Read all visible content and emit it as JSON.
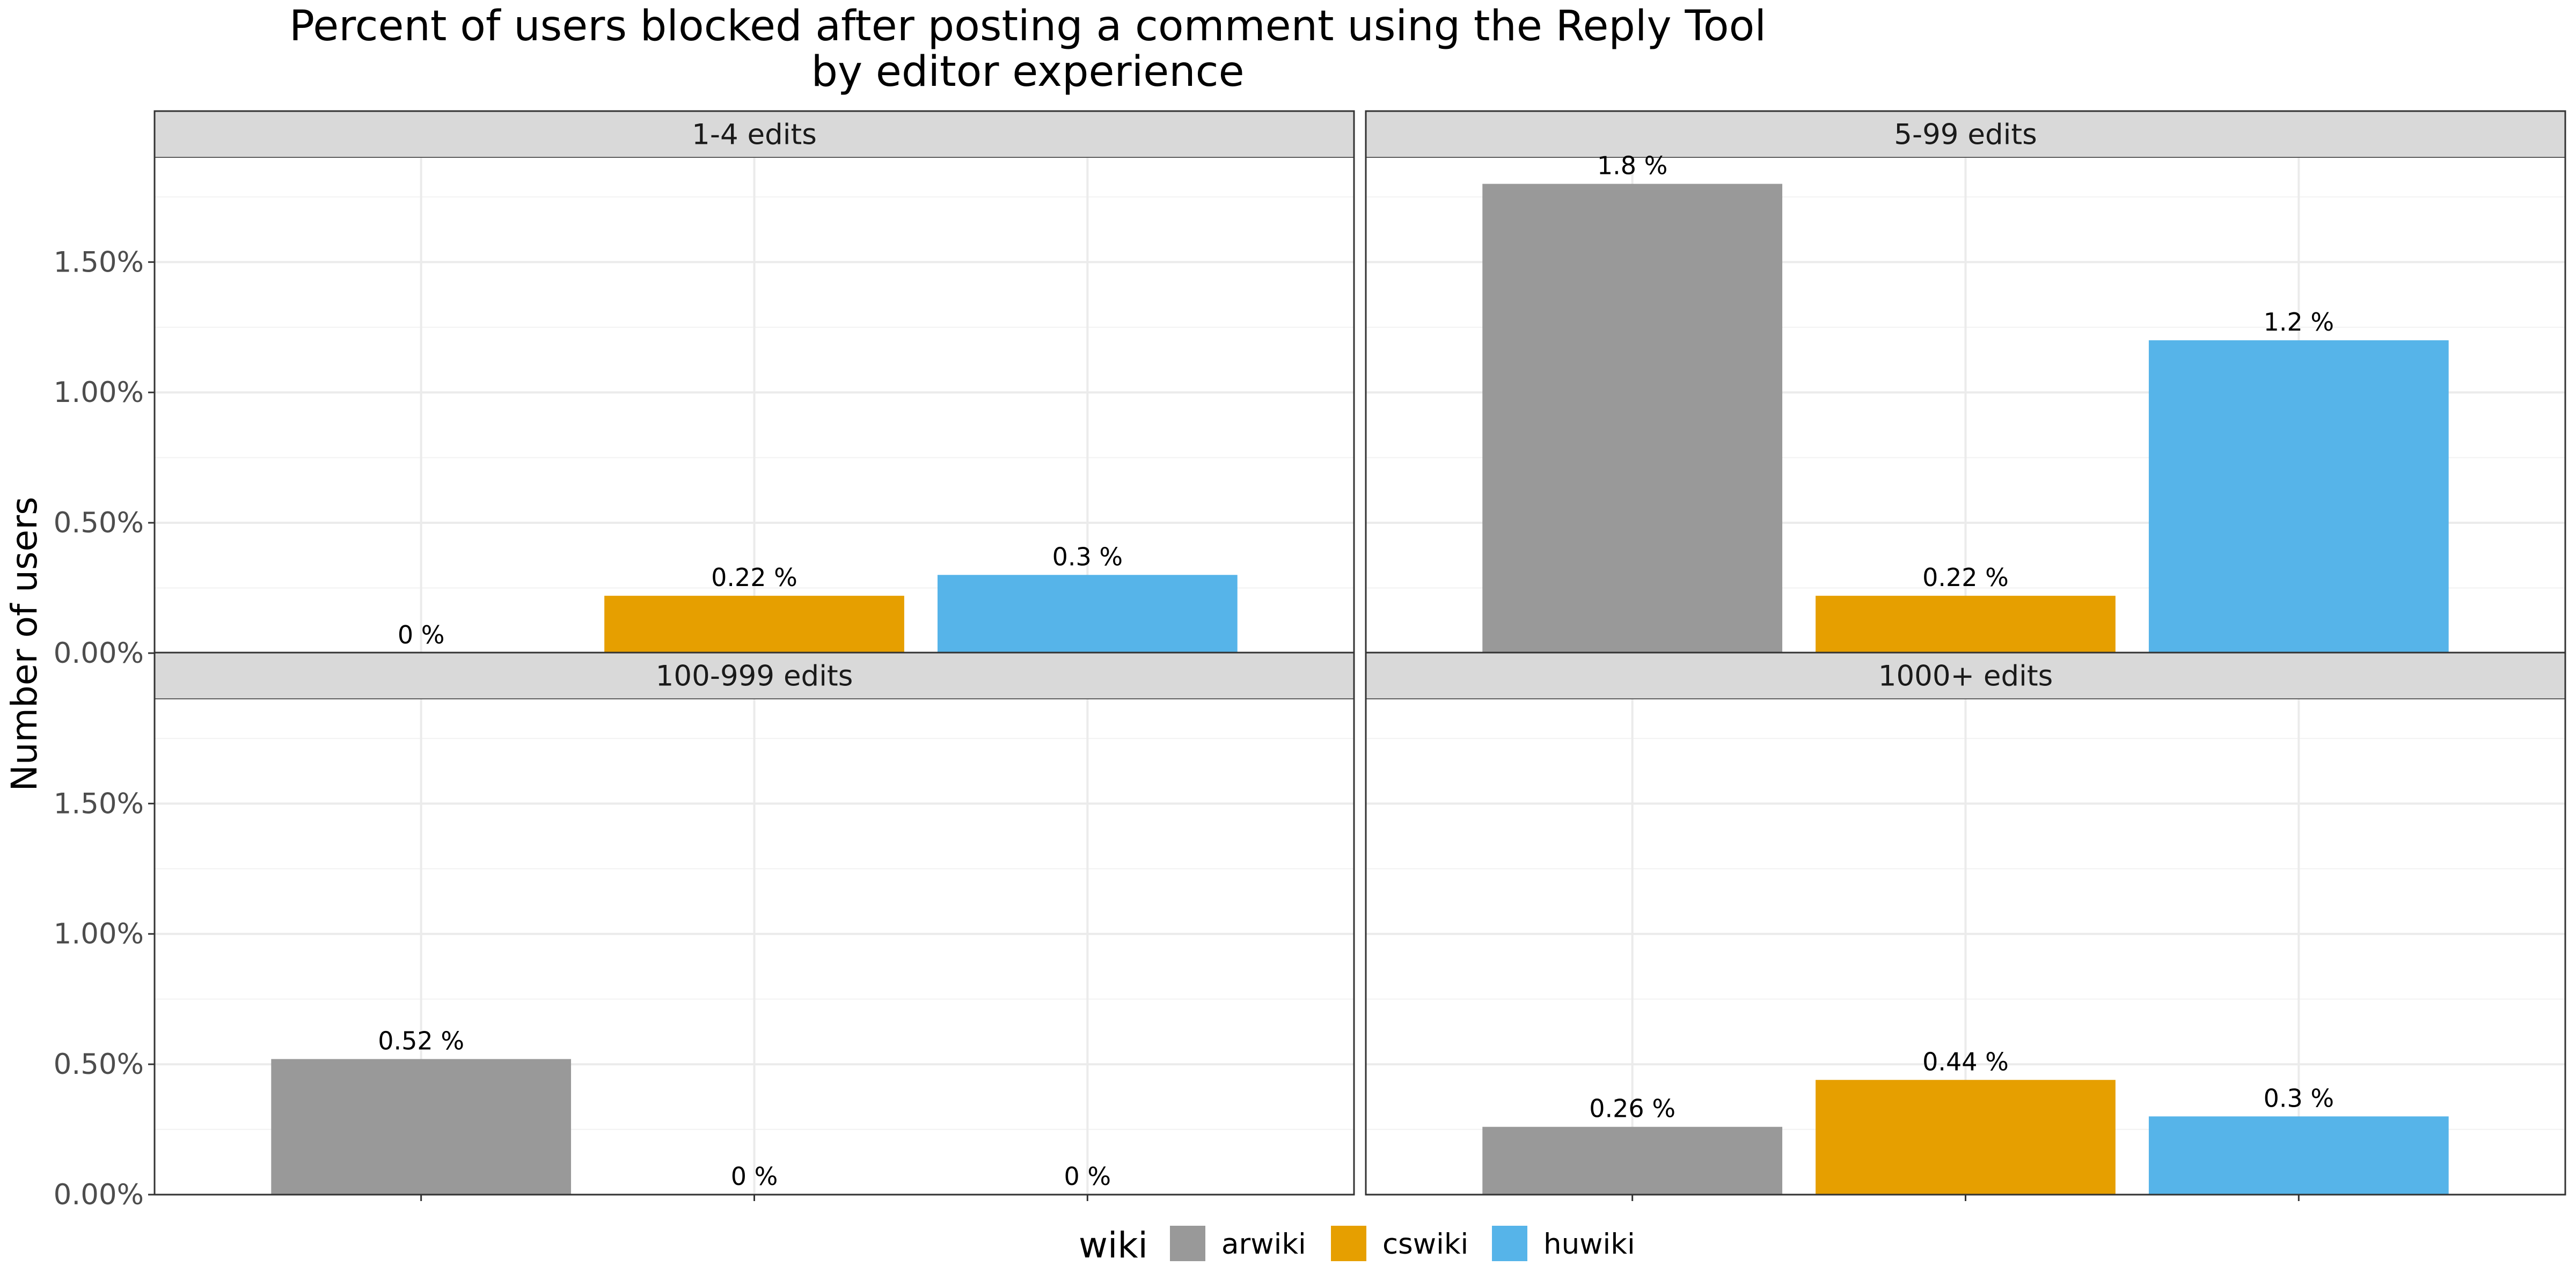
{
  "chart_data": {
    "type": "bar",
    "title": "Percent of users blocked after posting a comment using the Reply Tool",
    "subtitle": "by editor experience",
    "ylabel": "Number of users",
    "xlabel": "",
    "ylim": [
      0,
      1.9
    ],
    "yticks": [
      0,
      0.5,
      1.0,
      1.5
    ],
    "ytick_labels": [
      "0.00%",
      "0.50%",
      "1.00%",
      "1.50%"
    ],
    "categories": [
      "arwiki",
      "cswiki",
      "huwiki"
    ],
    "legend": {
      "title": "wiki",
      "position": "bottom",
      "entries": [
        {
          "name": "arwiki",
          "color": "#999999"
        },
        {
          "name": "cswiki",
          "color": "#E69F00"
        },
        {
          "name": "huwiki",
          "color": "#56B4E9"
        }
      ]
    },
    "grid": true,
    "facets": [
      {
        "label": "1-4 edits",
        "values": [
          0,
          0.22,
          0.3
        ],
        "data_labels": [
          "0 %",
          "0.22 %",
          "0.3 %"
        ]
      },
      {
        "label": "5-99 edits",
        "values": [
          1.8,
          0.22,
          1.2
        ],
        "data_labels": [
          "1.8 %",
          "0.22 %",
          "1.2 %"
        ]
      },
      {
        "label": "100-999 edits",
        "values": [
          0.52,
          0,
          0
        ],
        "data_labels": [
          "0.52 %",
          "0 %",
          "0 %"
        ]
      },
      {
        "label": "1000+ edits",
        "values": [
          0.26,
          0.44,
          0.3
        ],
        "data_labels": [
          "0.26 %",
          "0.44 %",
          "0.3 %"
        ]
      }
    ]
  }
}
